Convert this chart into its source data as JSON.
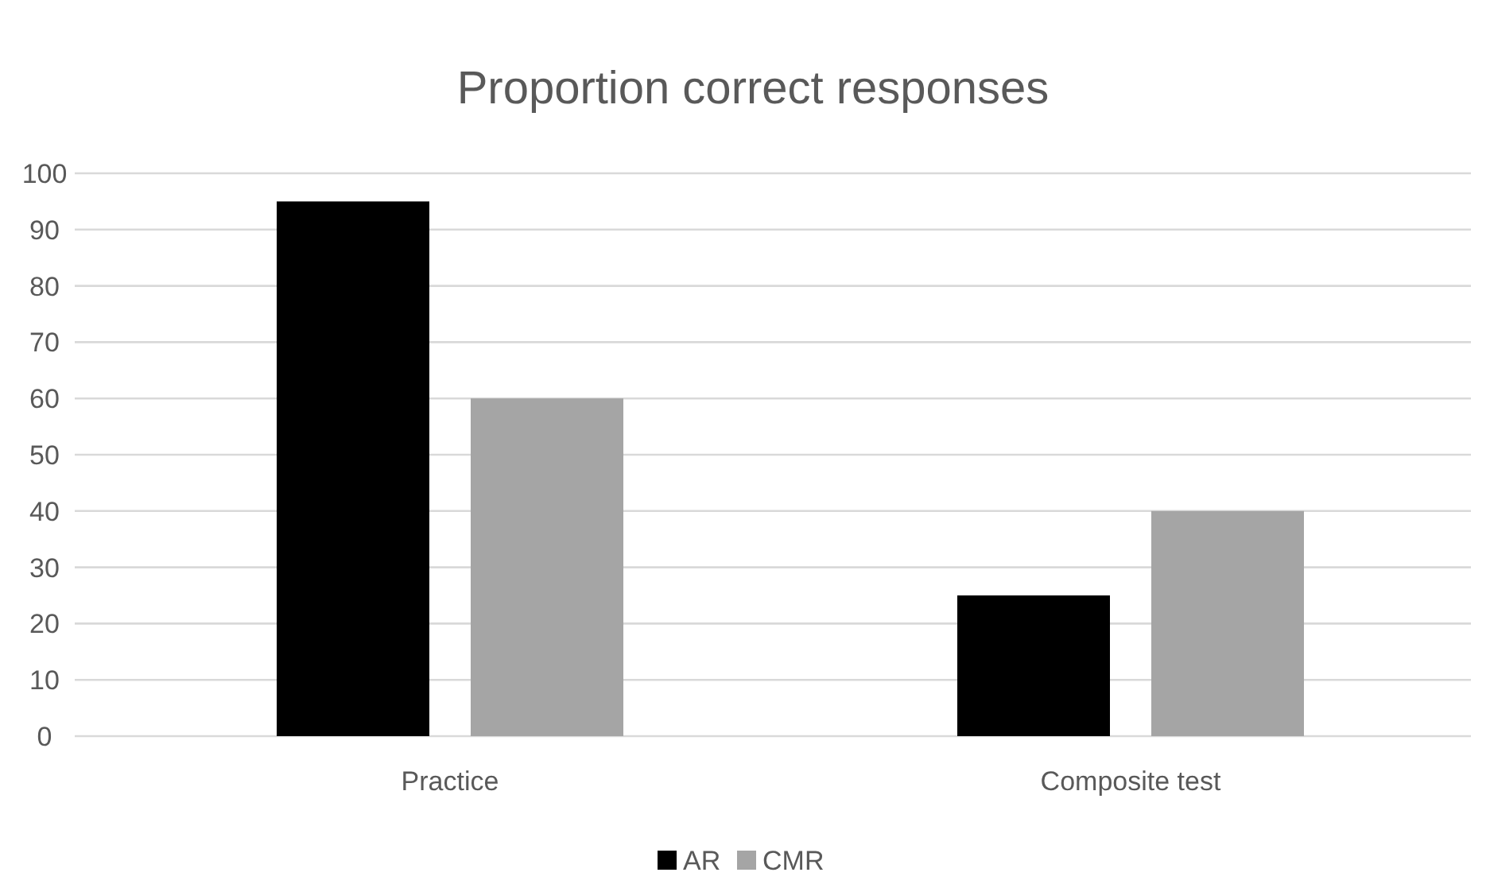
{
  "chart_data": {
    "type": "bar",
    "title": "Proportion correct responses",
    "categories": [
      "Practice",
      "Composite test"
    ],
    "series": [
      {
        "name": "AR",
        "color": "#000000",
        "values": [
          95,
          25
        ]
      },
      {
        "name": "CMR",
        "color": "#a5a5a5",
        "values": [
          60,
          40
        ]
      }
    ],
    "ylim": [
      0,
      100
    ],
    "yticks": [
      0,
      10,
      20,
      30,
      40,
      50,
      60,
      70,
      80,
      90,
      100
    ],
    "grid": "y",
    "legend": "bottom"
  }
}
